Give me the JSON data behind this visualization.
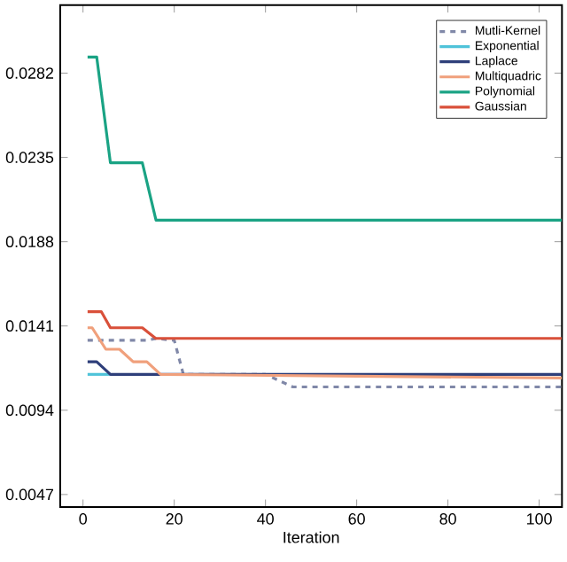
{
  "chart_data": {
    "type": "line",
    "xlabel": "Iteration",
    "xlim": [
      -5,
      105
    ],
    "ylim": [
      0.004,
      0.032
    ],
    "xticks": [
      0,
      20,
      40,
      60,
      80,
      100
    ],
    "yticks": [
      0.0047,
      0.0094,
      0.0141,
      0.0188,
      0.0235,
      0.0282
    ],
    "grid": false,
    "legend": "top right",
    "line_style": "solid",
    "marker": "none",
    "series": [
      {
        "name": "Mutli-Kernel",
        "color": "#8088a8",
        "line_style": "dashed",
        "x": [
          1,
          14,
          16,
          20,
          22,
          40,
          46,
          105
        ],
        "values": [
          0.0133,
          0.0133,
          0.0134,
          0.0133,
          0.0114,
          0.0114,
          0.0107,
          0.0107
        ]
      },
      {
        "name": "Exponential",
        "color": "#4fc3d9",
        "x": [
          1,
          6
        ],
        "values": [
          0.0114,
          0.0114
        ]
      },
      {
        "name": "Laplace",
        "color": "#2e3f7a",
        "x": [
          1,
          3,
          6,
          105
        ],
        "values": [
          0.0121,
          0.0121,
          0.0114,
          0.0114
        ]
      },
      {
        "name": "Multiquadric",
        "color": "#f0a07c",
        "x": [
          1,
          2,
          5,
          8,
          11,
          14,
          17,
          60,
          105
        ],
        "values": [
          0.014,
          0.014,
          0.0128,
          0.0128,
          0.0121,
          0.0121,
          0.0114,
          0.0113,
          0.0112
        ]
      },
      {
        "name": "Polynomial",
        "color": "#1aa384",
        "x": [
          1,
          3,
          6,
          13,
          16,
          105
        ],
        "values": [
          0.0291,
          0.0291,
          0.0232,
          0.0232,
          0.02,
          0.02
        ]
      },
      {
        "name": "Gaussian",
        "color": "#d9503a",
        "x": [
          1,
          4,
          6,
          13,
          16,
          105
        ],
        "values": [
          0.0149,
          0.0149,
          0.014,
          0.014,
          0.0134,
          0.0134
        ]
      }
    ]
  }
}
